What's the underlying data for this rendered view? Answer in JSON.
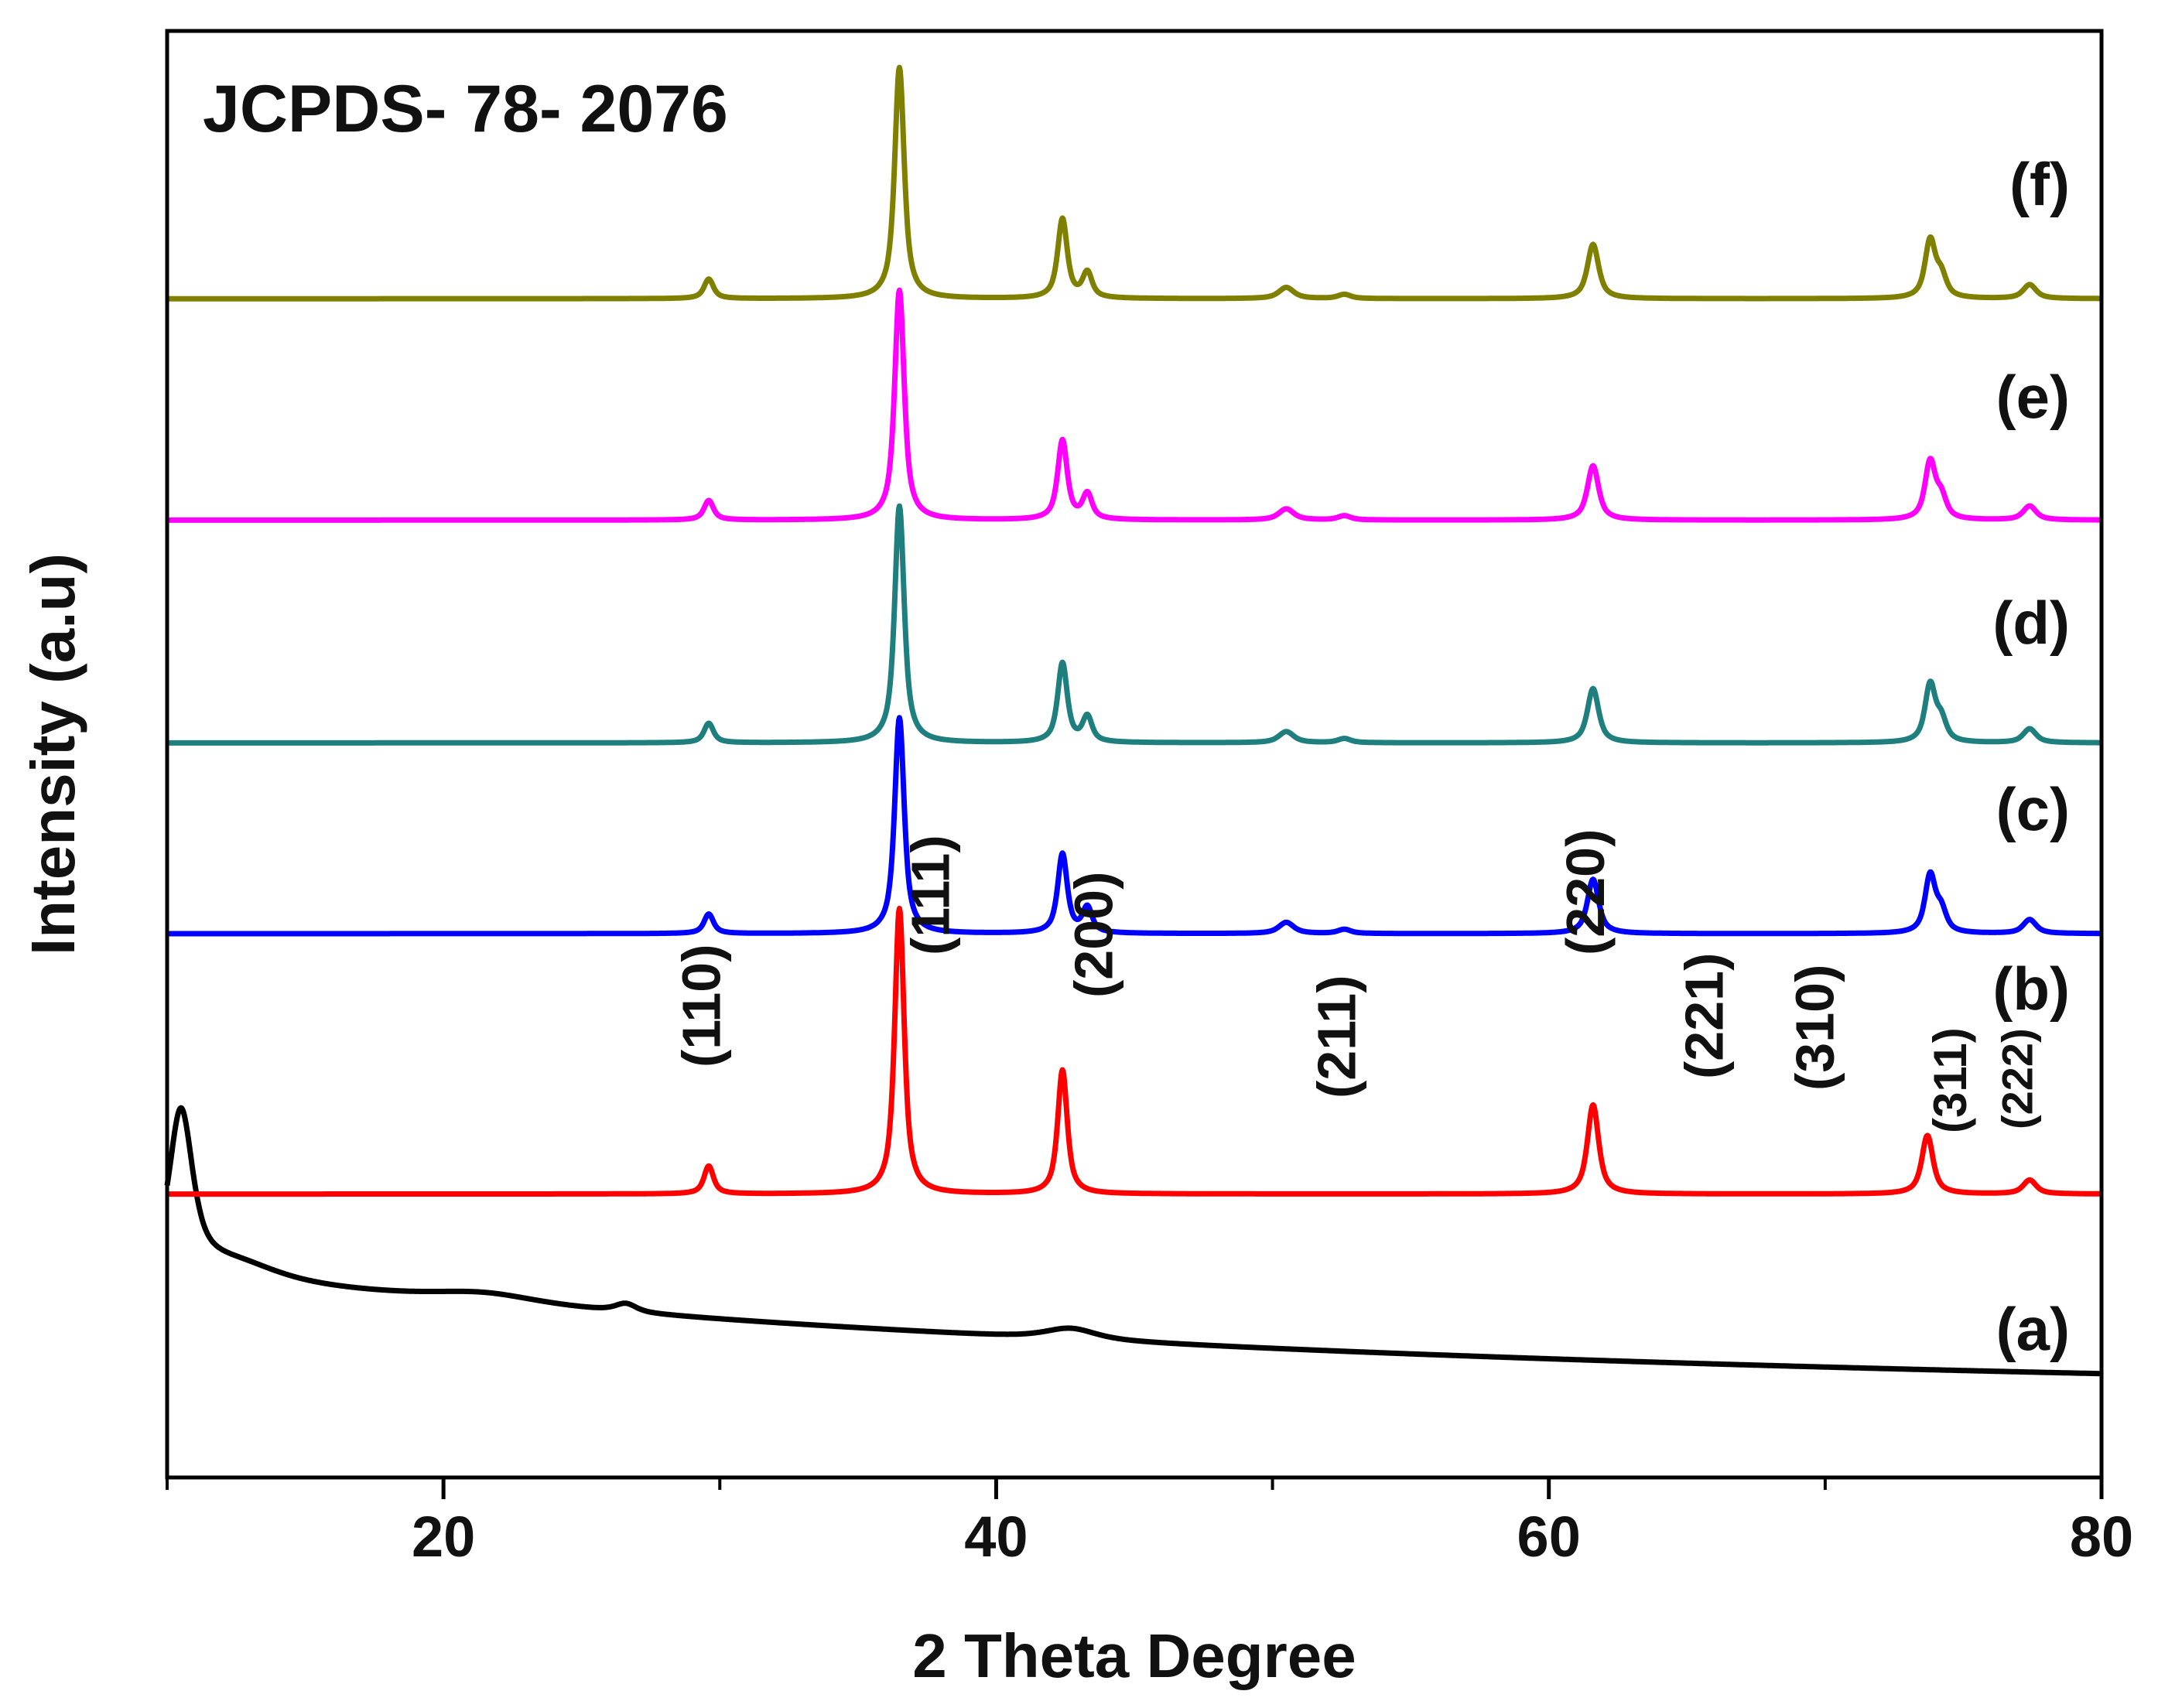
{
  "chart_data": {
    "type": "line",
    "title": "",
    "annotation": "JCPDS- 78- 2076",
    "xlabel": "2 Theta Degree",
    "ylabel": "Intensity (a.u)",
    "xlim": [
      10,
      80
    ],
    "xticks": [
      20,
      40,
      60,
      80
    ],
    "xtick_labels": [
      "20",
      "40",
      "60",
      "80"
    ],
    "yticks": "none (arbitrary units)",
    "series": [
      {
        "name": "(a)",
        "color": "#000000",
        "kind": "amorphous",
        "offset": 0.0,
        "baseline_start": 0.09,
        "baseline_end": 0.0,
        "peaks": [
          {
            "x": 10.5,
            "h": 0.115,
            "w": 0.55
          },
          {
            "x": 12.5,
            "h": 0.012,
            "w": 2.0
          },
          {
            "x": 21.5,
            "h": 0.007,
            "w": 2.5
          },
          {
            "x": 26.6,
            "h": 0.006,
            "w": 0.5
          },
          {
            "x": 42.7,
            "h": 0.008,
            "w": 1.2
          }
        ]
      },
      {
        "name": "(b)",
        "color": "#ff0000",
        "offset": 0.148,
        "peaks": [
          {
            "x": 29.6,
            "h": 0.02,
            "w": 0.22
          },
          {
            "x": 36.5,
            "h": 0.205,
            "w": 0.22
          },
          {
            "x": 42.4,
            "h": 0.089,
            "w": 0.22
          },
          {
            "x": 61.6,
            "h": 0.064,
            "w": 0.26
          },
          {
            "x": 73.7,
            "h": 0.042,
            "w": 0.26
          },
          {
            "x": 77.4,
            "h": 0.01,
            "w": 0.3
          }
        ]
      },
      {
        "name": "(c)",
        "color": "#0000ff",
        "offset": 0.335,
        "peaks": [
          {
            "x": 29.6,
            "h": 0.014,
            "w": 0.22
          },
          {
            "x": 36.5,
            "h": 0.155,
            "w": 0.22
          },
          {
            "x": 42.4,
            "h": 0.057,
            "w": 0.22
          },
          {
            "x": 43.3,
            "h": 0.018,
            "w": 0.22
          },
          {
            "x": 50.5,
            "h": 0.008,
            "w": 0.35
          },
          {
            "x": 52.6,
            "h": 0.003,
            "w": 0.3
          },
          {
            "x": 61.6,
            "h": 0.039,
            "w": 0.26
          },
          {
            "x": 73.8,
            "h": 0.041,
            "w": 0.24
          },
          {
            "x": 74.2,
            "h": 0.015,
            "w": 0.24
          },
          {
            "x": 77.4,
            "h": 0.01,
            "w": 0.3
          }
        ]
      },
      {
        "name": "(d)",
        "color": "#1f7f7f",
        "offset": 0.472,
        "peaks": [
          {
            "x": 29.6,
            "h": 0.014,
            "w": 0.22
          },
          {
            "x": 36.5,
            "h": 0.17,
            "w": 0.22
          },
          {
            "x": 42.4,
            "h": 0.057,
            "w": 0.22
          },
          {
            "x": 43.3,
            "h": 0.018,
            "w": 0.22
          },
          {
            "x": 50.5,
            "h": 0.008,
            "w": 0.35
          },
          {
            "x": 52.6,
            "h": 0.003,
            "w": 0.3
          },
          {
            "x": 61.6,
            "h": 0.039,
            "w": 0.26
          },
          {
            "x": 73.8,
            "h": 0.041,
            "w": 0.24
          },
          {
            "x": 74.2,
            "h": 0.015,
            "w": 0.24
          },
          {
            "x": 77.4,
            "h": 0.01,
            "w": 0.3
          }
        ]
      },
      {
        "name": "(e)",
        "color": "#ff00ff",
        "offset": 0.632,
        "peaks": [
          {
            "x": 29.6,
            "h": 0.014,
            "w": 0.22
          },
          {
            "x": 36.5,
            "h": 0.165,
            "w": 0.22
          },
          {
            "x": 42.4,
            "h": 0.057,
            "w": 0.22
          },
          {
            "x": 43.3,
            "h": 0.018,
            "w": 0.22
          },
          {
            "x": 50.5,
            "h": 0.008,
            "w": 0.35
          },
          {
            "x": 52.6,
            "h": 0.003,
            "w": 0.3
          },
          {
            "x": 61.6,
            "h": 0.039,
            "w": 0.26
          },
          {
            "x": 73.8,
            "h": 0.041,
            "w": 0.24
          },
          {
            "x": 74.2,
            "h": 0.015,
            "w": 0.24
          },
          {
            "x": 77.4,
            "h": 0.01,
            "w": 0.3
          }
        ]
      },
      {
        "name": "(f)",
        "color": "#808000",
        "offset": 0.791,
        "peaks": [
          {
            "x": 29.6,
            "h": 0.014,
            "w": 0.22
          },
          {
            "x": 36.5,
            "h": 0.166,
            "w": 0.22
          },
          {
            "x": 42.4,
            "h": 0.057,
            "w": 0.22
          },
          {
            "x": 43.3,
            "h": 0.018,
            "w": 0.22
          },
          {
            "x": 50.5,
            "h": 0.008,
            "w": 0.35
          },
          {
            "x": 52.6,
            "h": 0.003,
            "w": 0.3
          },
          {
            "x": 61.6,
            "h": 0.039,
            "w": 0.26
          },
          {
            "x": 73.8,
            "h": 0.041,
            "w": 0.24
          },
          {
            "x": 74.2,
            "h": 0.015,
            "w": 0.24
          },
          {
            "x": 77.4,
            "h": 0.01,
            "w": 0.3
          }
        ]
      }
    ],
    "plane_labels": [
      {
        "text": "(110)",
        "x": 30.0
      },
      {
        "text": "(111)",
        "x": 38.3
      },
      {
        "text": "(200)",
        "x": 44.2
      },
      {
        "text": "(211)",
        "x": 53.0
      },
      {
        "text": "(220)",
        "x": 62.0
      },
      {
        "text": "(221)",
        "x": 66.3
      },
      {
        "text": "(310)",
        "x": 70.3
      },
      {
        "text": "(311)",
        "x": 75.1
      },
      {
        "text": "(222)",
        "x": 77.5
      }
    ]
  }
}
